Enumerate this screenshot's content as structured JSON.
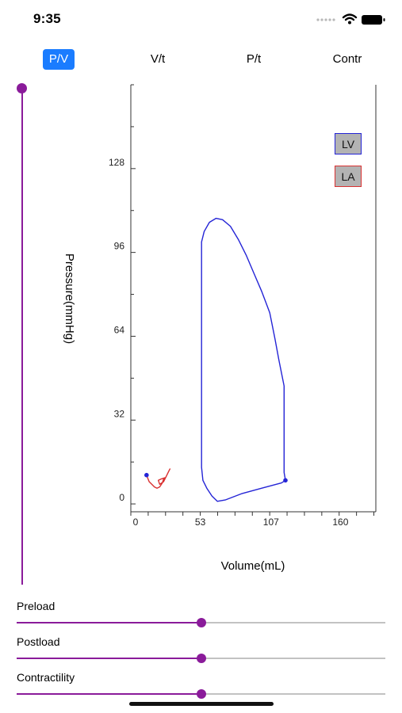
{
  "status": {
    "time": "9:35"
  },
  "tabs": [
    {
      "label": "P/V",
      "active": true
    },
    {
      "label": "V/t",
      "active": false
    },
    {
      "label": "P/t",
      "active": false
    },
    {
      "label": "Contr",
      "active": false
    }
  ],
  "legend": {
    "lv": "LV",
    "la": "LA"
  },
  "colors": {
    "accent": "#8a1b9a",
    "tab_active": "#1a7cff",
    "lv_line": "#2424d6",
    "la_line": "#d93030"
  },
  "sliders": [
    {
      "label": "Preload",
      "value": 0.5
    },
    {
      "label": "Postload",
      "value": 0.5
    },
    {
      "label": "Contractility",
      "value": 0.5
    }
  ],
  "vertical_slider": {
    "value": 1.0
  },
  "chart_data": {
    "type": "line",
    "xlabel": "Volume(mL)",
    "ylabel": "Pressure(mmHg)",
    "xlim": [
      0,
      187
    ],
    "ylim": [
      -3,
      160
    ],
    "x_ticks": [
      0,
      53,
      107,
      160
    ],
    "y_ticks": [
      0,
      32,
      64,
      96,
      128
    ],
    "series": [
      {
        "name": "LV",
        "color": "#2424d6",
        "points": [
          [
            118,
            9
          ],
          [
            115,
            8
          ],
          [
            100,
            6
          ],
          [
            85,
            4
          ],
          [
            72,
            1.5
          ],
          [
            66,
            1
          ],
          [
            62,
            3
          ],
          [
            58,
            6
          ],
          [
            55,
            9
          ],
          [
            54,
            14
          ],
          [
            54,
            40
          ],
          [
            54,
            70
          ],
          [
            54,
            90
          ],
          [
            54,
            100
          ],
          [
            56,
            104
          ],
          [
            60,
            107.5
          ],
          [
            65,
            109
          ],
          [
            70,
            108.5
          ],
          [
            76,
            106
          ],
          [
            82,
            101
          ],
          [
            88,
            95
          ],
          [
            94,
            88
          ],
          [
            100,
            81
          ],
          [
            106,
            73
          ],
          [
            110,
            63
          ],
          [
            113,
            55
          ],
          [
            117,
            45
          ],
          [
            117,
            35
          ],
          [
            117,
            22
          ],
          [
            117,
            12
          ],
          [
            118,
            9
          ]
        ],
        "marker": [
          118,
          9
        ]
      },
      {
        "name": "LA",
        "color": "#d93030",
        "points": [
          [
            12,
            11
          ],
          [
            14,
            8.5
          ],
          [
            16,
            7.5
          ],
          [
            18,
            6.5
          ],
          [
            20,
            6
          ],
          [
            22,
            6.5
          ],
          [
            24,
            8
          ],
          [
            25,
            9.5
          ],
          [
            26,
            10
          ],
          [
            23,
            9.5
          ],
          [
            21,
            9
          ],
          [
            22,
            7.5
          ],
          [
            25,
            8.5
          ],
          [
            27,
            10.5
          ],
          [
            29,
            12.5
          ],
          [
            30,
            13.5
          ]
        ],
        "marker": [
          12,
          11
        ]
      }
    ]
  }
}
